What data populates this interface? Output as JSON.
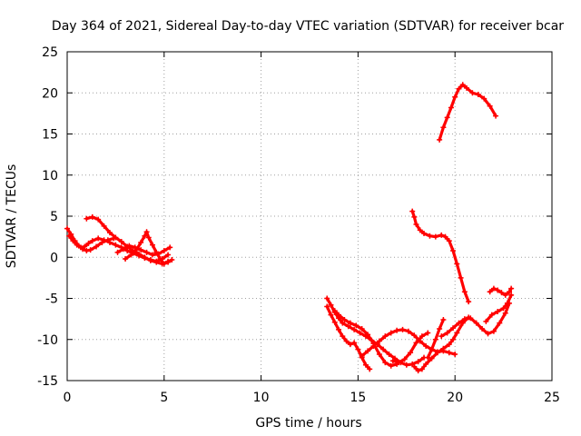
{
  "chart_data": {
    "type": "scatter",
    "title": "Day 364 of 2021, Sidereal Day-to-day VTEC variation (SDTVAR) for receiver bcar",
    "xlabel": "GPS time / hours",
    "ylabel": "SDTVAR / TECUs",
    "xlim": [
      0,
      25
    ],
    "ylim": [
      -15,
      25
    ],
    "xticks": [
      0,
      5,
      10,
      15,
      20,
      25
    ],
    "yticks": [
      -15,
      -10,
      -5,
      0,
      5,
      10,
      15,
      20,
      25
    ],
    "grid": true,
    "marker": "plus",
    "color": "#ff0000",
    "series": [
      {
        "x": [
          0.0,
          0.2,
          0.4,
          0.6,
          0.8,
          1.0,
          1.2,
          1.5,
          1.8,
          2.1,
          2.4
        ],
        "y": [
          3.5,
          2.8,
          2.0,
          1.4,
          1.0,
          0.8,
          0.9,
          1.3,
          1.8,
          2.1,
          2.3
        ]
      },
      {
        "x": [
          0.1,
          0.3,
          0.5,
          0.7,
          0.9,
          1.1,
          1.3,
          1.6,
          1.9,
          2.2,
          2.5,
          2.8,
          3.1,
          3.4,
          3.7,
          4.0,
          4.3,
          4.6,
          4.9,
          5.2
        ],
        "y": [
          2.6,
          2.0,
          1.5,
          1.2,
          1.3,
          1.7,
          2.0,
          2.3,
          2.1,
          1.8,
          1.5,
          1.2,
          0.8,
          0.5,
          0.2,
          -0.1,
          -0.3,
          -0.5,
          -0.2,
          0.3
        ]
      },
      {
        "x": [
          1.0,
          1.3,
          1.6,
          1.9,
          2.2,
          2.5,
          2.8,
          3.1,
          3.4,
          3.7,
          4.0,
          4.3,
          4.6,
          4.9,
          5.2,
          5.4
        ],
        "y": [
          4.7,
          4.9,
          4.6,
          3.8,
          3.0,
          2.4,
          1.9,
          1.3,
          0.8,
          0.4,
          0.0,
          -0.4,
          -0.6,
          -0.8,
          -0.6,
          -0.3
        ]
      },
      {
        "x": [
          2.6,
          2.9,
          3.2,
          3.5,
          3.8,
          4.1,
          4.4,
          4.7,
          5.0,
          5.3
        ],
        "y": [
          0.6,
          1.0,
          1.4,
          1.2,
          0.9,
          0.6,
          0.3,
          0.4,
          0.8,
          1.2
        ]
      },
      {
        "x": [
          3.0,
          3.3,
          3.6,
          3.8,
          4.0,
          4.1,
          4.2,
          4.4,
          4.6,
          4.8,
          5.0,
          5.2
        ],
        "y": [
          -0.2,
          0.3,
          1.0,
          1.8,
          2.6,
          3.1,
          2.4,
          1.5,
          0.6,
          -0.2,
          -0.8,
          -0.5
        ]
      },
      {
        "x": [
          13.4,
          13.6,
          13.8,
          14.0,
          14.2,
          14.5,
          14.8,
          15.1,
          15.4,
          15.7,
          16.0,
          16.3,
          16.6,
          16.9,
          17.2,
          17.5,
          17.8,
          18.1,
          18.4
        ],
        "y": [
          -5.0,
          -5.8,
          -6.7,
          -7.4,
          -8.0,
          -8.4,
          -8.8,
          -9.2,
          -9.6,
          -10.1,
          -10.6,
          -11.2,
          -11.8,
          -12.3,
          -12.8,
          -13.1,
          -13.0,
          -12.7,
          -12.2
        ]
      },
      {
        "x": [
          13.4,
          13.6,
          13.8,
          14.0,
          14.2,
          14.4,
          14.6,
          14.8,
          15.0,
          15.2,
          15.4,
          15.6
        ],
        "y": [
          -6.0,
          -7.0,
          -7.9,
          -8.8,
          -9.6,
          -10.2,
          -10.6,
          -10.4,
          -11.2,
          -12.2,
          -13.1,
          -13.6
        ]
      },
      {
        "x": [
          13.8,
          14.0,
          14.3,
          14.6,
          14.9,
          15.2,
          15.5,
          15.8,
          16.1,
          16.4,
          16.7,
          17.0
        ],
        "y": [
          -6.5,
          -7.0,
          -7.6,
          -8.0,
          -8.3,
          -8.7,
          -9.4,
          -10.5,
          -11.8,
          -12.8,
          -13.2,
          -13.0
        ]
      },
      {
        "x": [
          15.2,
          15.5,
          15.8,
          16.1,
          16.4,
          16.7,
          17.0,
          17.3,
          17.6,
          17.9,
          18.2,
          18.5,
          18.8,
          19.1,
          19.4,
          19.7,
          20.0
        ],
        "y": [
          -12.0,
          -11.4,
          -10.8,
          -10.2,
          -9.6,
          -9.2,
          -8.9,
          -8.8,
          -9.0,
          -9.5,
          -10.2,
          -10.8,
          -11.2,
          -11.5,
          -11.4,
          -11.6,
          -11.8
        ]
      },
      {
        "x": [
          16.8,
          17.1,
          17.4,
          17.7,
          18.0,
          18.3,
          18.6
        ],
        "y": [
          -12.6,
          -12.8,
          -12.4,
          -11.6,
          -10.4,
          -9.6,
          -9.2
        ]
      },
      {
        "x": [
          17.9,
          18.1,
          18.3,
          18.5,
          18.8,
          19.1,
          19.4,
          19.7,
          19.9,
          20.1,
          20.4,
          20.7
        ],
        "y": [
          -13.3,
          -13.8,
          -13.6,
          -13.0,
          -12.3,
          -11.6,
          -11.1,
          -10.6,
          -10.0,
          -9.2,
          -8.0,
          -7.3
        ]
      },
      {
        "x": [
          18.6,
          18.8,
          19.0,
          19.2,
          19.4
        ],
        "y": [
          -12.2,
          -11.2,
          -10.0,
          -8.7,
          -7.6
        ]
      },
      {
        "x": [
          19.3,
          19.6,
          19.9,
          20.2,
          20.5,
          20.8,
          21.1,
          21.4,
          21.7,
          22.0,
          22.3,
          22.6,
          22.8
        ],
        "y": [
          -9.6,
          -9.2,
          -8.6,
          -8.0,
          -7.5,
          -7.4,
          -8.0,
          -8.7,
          -9.3,
          -9.0,
          -8.0,
          -6.8,
          -5.6
        ]
      },
      {
        "x": [
          21.8,
          22.0,
          22.2,
          22.4,
          22.6,
          22.8,
          22.9
        ],
        "y": [
          -4.2,
          -3.8,
          -4.0,
          -4.3,
          -4.6,
          -4.2,
          -3.8
        ]
      },
      {
        "x": [
          21.6,
          21.9,
          22.2,
          22.5,
          22.7,
          22.9
        ],
        "y": [
          -7.8,
          -7.0,
          -6.6,
          -6.2,
          -5.6,
          -4.6
        ]
      },
      {
        "x": [
          17.8,
          17.9,
          18.0,
          18.2,
          18.4,
          18.7,
          19.0,
          19.3,
          19.5,
          19.7,
          19.9,
          20.1,
          20.3,
          20.5,
          20.7
        ],
        "y": [
          5.6,
          4.9,
          4.0,
          3.3,
          2.9,
          2.6,
          2.5,
          2.7,
          2.5,
          2.0,
          0.8,
          -0.8,
          -2.5,
          -4.2,
          -5.4
        ]
      },
      {
        "x": [
          19.2,
          19.4,
          19.6,
          19.8,
          20.0,
          20.2,
          20.4,
          20.6,
          20.9,
          21.2,
          21.5,
          21.8,
          22.1
        ],
        "y": [
          14.3,
          15.8,
          17.0,
          18.2,
          19.5,
          20.5,
          21.0,
          20.6,
          20.0,
          19.8,
          19.3,
          18.4,
          17.2
        ]
      }
    ]
  }
}
